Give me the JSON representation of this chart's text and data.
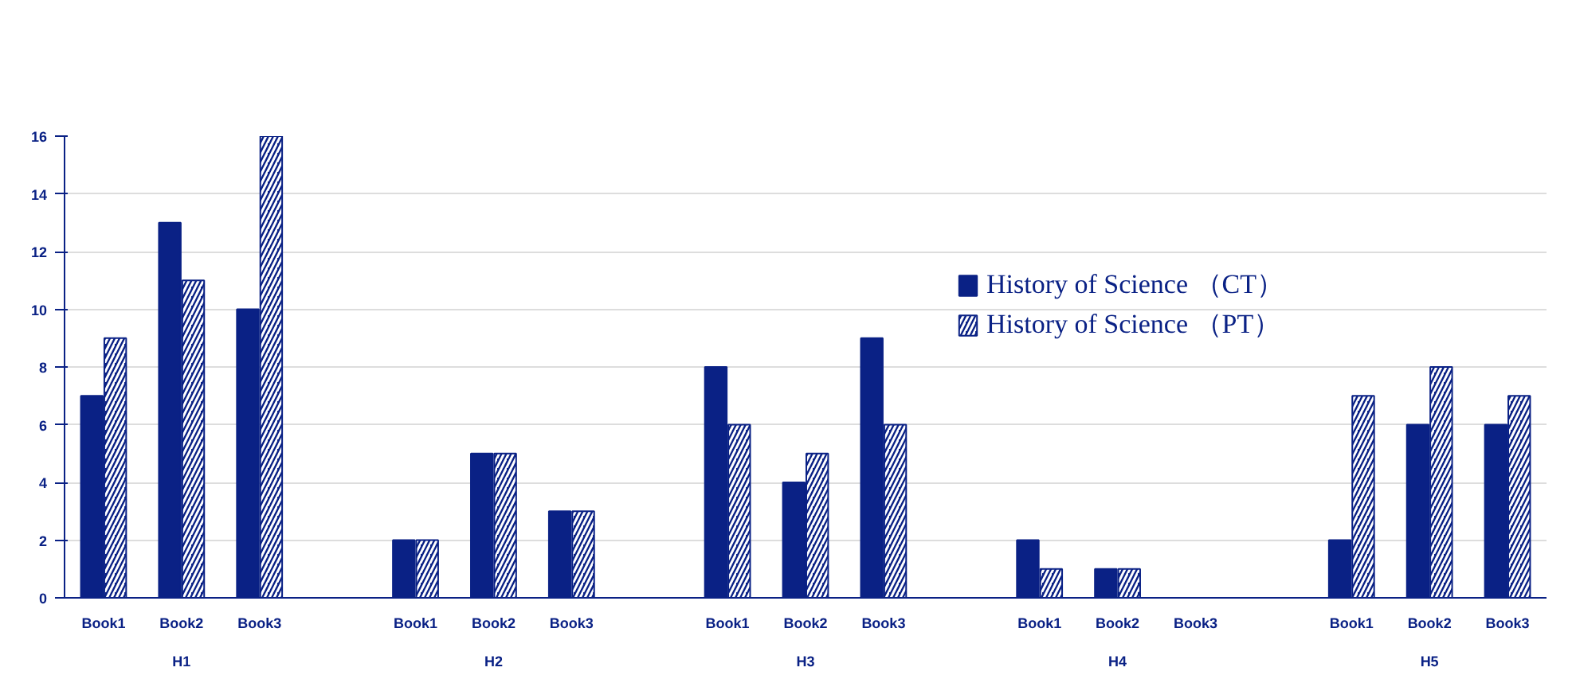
{
  "chart_data": {
    "type": "bar",
    "categories": [
      "Book1",
      "Book2",
      "Book3",
      null,
      "Book1",
      "Book2",
      "Book3",
      null,
      "Book1",
      "Book2",
      "Book3",
      null,
      "Book1",
      "Book2",
      "Book3",
      null,
      "Book1",
      "Book2",
      "Book3"
    ],
    "series": [
      {
        "name": "History of Science （CT）",
        "color": "#0a2185",
        "values": [
          7,
          13,
          10,
          null,
          2,
          5,
          3,
          null,
          8,
          4,
          9,
          null,
          2,
          1,
          0,
          null,
          2,
          6,
          6
        ]
      },
      {
        "name": "History of Science （PT）",
        "color": "#0a2185",
        "values": [
          9,
          11,
          16,
          null,
          2,
          5,
          3,
          null,
          6,
          5,
          6,
          null,
          1,
          1,
          0,
          null,
          7,
          8,
          7
        ]
      }
    ],
    "annotations": [
      "H1",
      "H2",
      "H3",
      "H4",
      "H5"
    ],
    "ylim": [
      0,
      16
    ],
    "yticks": [
      0,
      2,
      4,
      6,
      8,
      10,
      12,
      14,
      16
    ],
    "grid": "y",
    "legend": "top right"
  }
}
